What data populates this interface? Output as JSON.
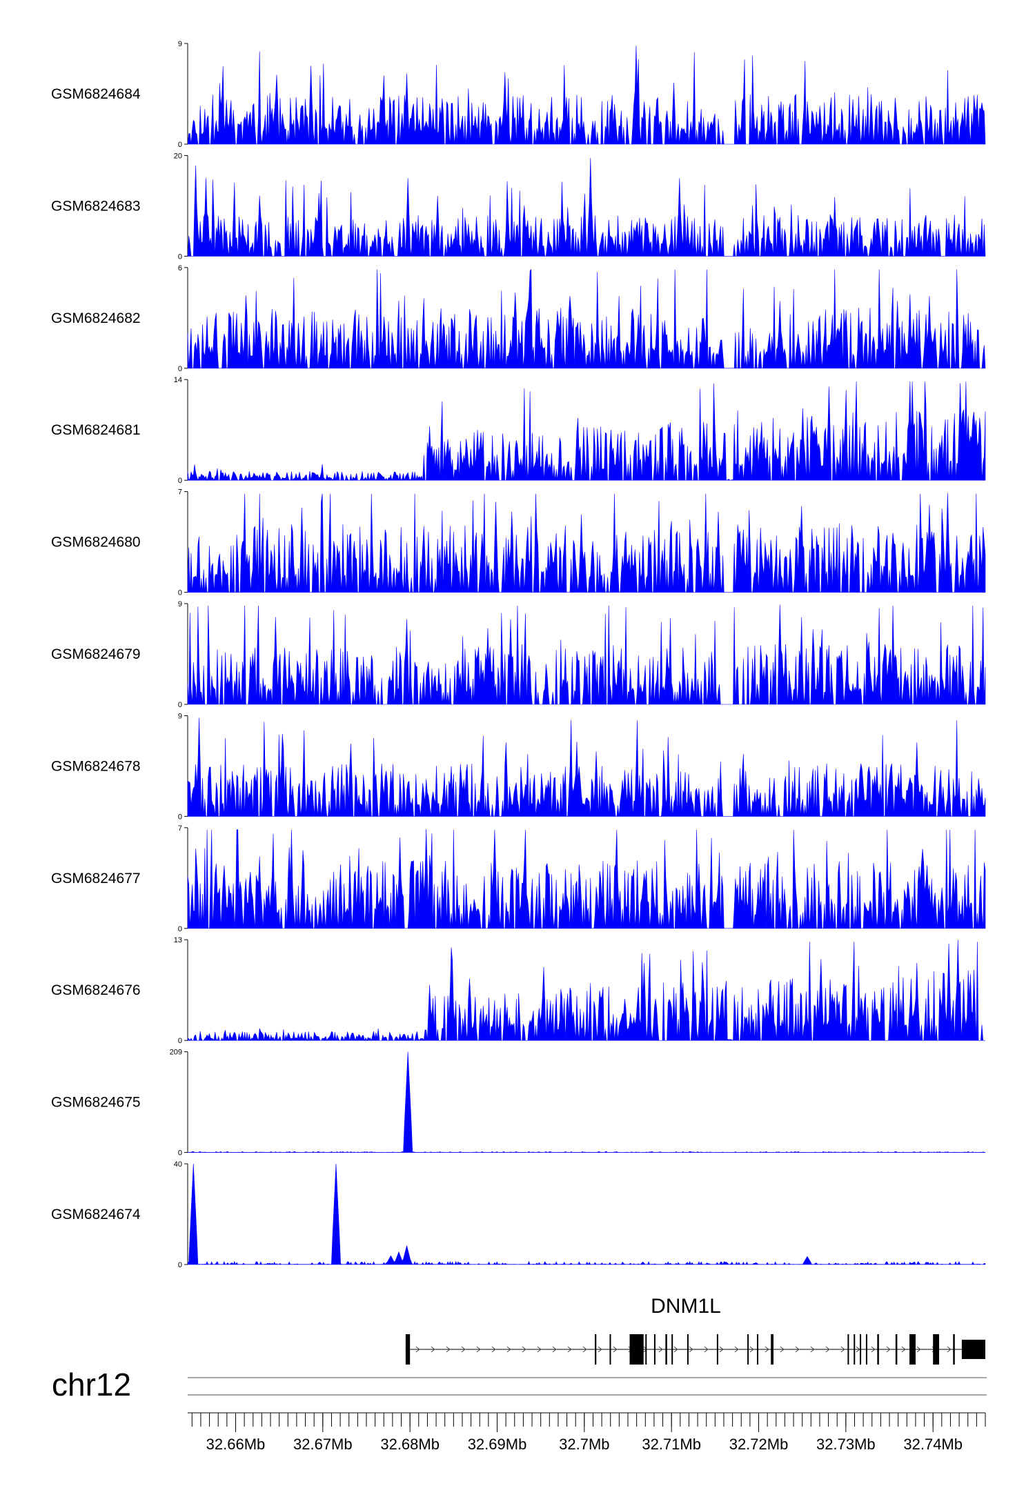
{
  "chart_data": {
    "type": "area",
    "title": "",
    "region": {
      "chromosome": "chr12",
      "start_mb": 32.6545,
      "end_mb": 32.746,
      "ticks": [
        "32.66Mb",
        "32.67Mb",
        "32.68Mb",
        "32.69Mb",
        "32.7Mb",
        "32.71Mb",
        "32.72Mb",
        "32.73Mb",
        "32.74Mb"
      ],
      "tick_values": [
        32.66,
        32.67,
        32.68,
        32.69,
        32.7,
        32.71,
        32.72,
        32.73,
        32.74
      ]
    },
    "tracks": [
      {
        "name": "GSM6824684",
        "ymax": 9,
        "ymin": 0,
        "pattern": "sparse",
        "base": 0.33,
        "seed": 11,
        "peaks": [
          [
            32.6686,
            7.0
          ],
          [
            32.6647,
            6.2
          ],
          [
            32.6796,
            6.3
          ],
          [
            32.6909,
            6.4
          ],
          [
            32.7059,
            8.8
          ],
          [
            32.7102,
            5.5
          ]
        ]
      },
      {
        "name": "GSM6824683",
        "ymax": 20,
        "ymin": 0,
        "pattern": "sparse",
        "base": 0.28,
        "seed": 23,
        "peaks": [
          [
            32.6554,
            18.0
          ],
          [
            32.6566,
            15.5
          ],
          [
            32.6627,
            12.0
          ],
          [
            32.6696,
            12.5
          ],
          [
            32.6798,
            15.5
          ],
          [
            32.6832,
            12.0
          ],
          [
            32.7007,
            19.5
          ],
          [
            32.7109,
            15.5
          ]
        ]
      },
      {
        "name": "GSM6824682",
        "ymax": 6,
        "ymin": 0,
        "pattern": "sparse",
        "base": 0.4,
        "seed": 37,
        "peaks": [
          [
            32.6938,
            5.8
          ],
          [
            32.6921,
            4.5
          ],
          [
            32.6936,
            4.2
          ],
          [
            32.6983,
            4.3
          ],
          [
            32.7224,
            4.0
          ],
          [
            32.7359,
            4.0
          ],
          [
            32.7396,
            4.3
          ]
        ]
      },
      {
        "name": "GSM6824681",
        "ymax": 14,
        "ymin": 0,
        "pattern": "ramp",
        "base": 0.35,
        "seed": 41,
        "peaks": [
          [
            32.6822,
            7.5
          ],
          [
            32.6878,
            7.0
          ],
          [
            32.6993,
            6.8
          ],
          [
            32.7112,
            7.3
          ],
          [
            32.7251,
            10.0
          ],
          [
            32.7281,
            13.0
          ],
          [
            32.7431,
            13.5
          ],
          [
            32.7441,
            9.0
          ]
        ]
      },
      {
        "name": "GSM6824680",
        "ymax": 7,
        "ymin": 0,
        "pattern": "sparse",
        "base": 0.45,
        "seed": 53,
        "peaks": [
          [
            32.6898,
            6.3
          ],
          [
            32.6917,
            5.6
          ],
          [
            32.6997,
            5.4
          ],
          [
            32.7154,
            5.6
          ],
          [
            32.7249,
            6.0
          ],
          [
            32.7396,
            6.1
          ],
          [
            32.7417,
            6.9
          ]
        ]
      },
      {
        "name": "GSM6824679",
        "ymax": 9,
        "ymin": 0,
        "pattern": "sparse",
        "base": 0.4,
        "seed": 67,
        "peaks": [
          [
            32.6646,
            7.8
          ],
          [
            32.6796,
            7.6
          ],
          [
            32.6915,
            7.6
          ],
          [
            32.6889,
            6.8
          ],
          [
            32.7225,
            8.9
          ],
          [
            32.7262,
            6.7
          ],
          [
            32.7326,
            5.6
          ]
        ]
      },
      {
        "name": "GSM6824678",
        "ymax": 9,
        "ymin": 0,
        "pattern": "sparse",
        "base": 0.35,
        "seed": 71,
        "peaks": [
          [
            32.6558,
            8.8
          ],
          [
            32.6732,
            6.5
          ],
          [
            32.691,
            6.6
          ],
          [
            32.7014,
            5.8
          ],
          [
            32.7335,
            4.4
          ],
          [
            32.7382,
            6.6
          ]
        ]
      },
      {
        "name": "GSM6824677",
        "ymax": 7,
        "ymin": 0,
        "pattern": "sparse",
        "base": 0.45,
        "seed": 83,
        "peaks": [
          [
            32.6789,
            6.3
          ],
          [
            32.6819,
            6.9
          ],
          [
            32.6578,
            4.5
          ],
          [
            32.6627,
            5.0
          ],
          [
            32.7131,
            4.5
          ],
          [
            32.7384,
            4.3
          ]
        ]
      },
      {
        "name": "GSM6824676",
        "ymax": 13,
        "ymin": 0,
        "pattern": "ramp",
        "base": 0.3,
        "seed": 97,
        "peaks": [
          [
            32.6847,
            12.0
          ],
          [
            32.6868,
            8.0
          ],
          [
            32.6954,
            9.5
          ],
          [
            32.7069,
            10.0
          ],
          [
            32.7271,
            10.5
          ],
          [
            32.7429,
            13.0
          ],
          [
            32.7418,
            12.5
          ],
          [
            32.7382,
            10.0
          ]
        ]
      },
      {
        "name": "GSM6824675",
        "ymax": 209,
        "ymin": 0,
        "pattern": "single",
        "base": 0.01,
        "seed": 101,
        "peaks": [
          [
            32.6797,
            209
          ]
        ]
      },
      {
        "name": "GSM6824674",
        "ymax": 40,
        "ymin": 0,
        "pattern": "multi",
        "base": 0.03,
        "seed": 113,
        "peaks": [
          [
            32.6551,
            40
          ],
          [
            32.6715,
            40
          ],
          [
            32.6796,
            7.5
          ],
          [
            32.6787,
            5.0
          ],
          [
            32.6778,
            3.5
          ],
          [
            32.7256,
            3.2
          ]
        ]
      }
    ],
    "gene": {
      "name": "DNM1L",
      "start_mb": 32.6795,
      "end_mb": 32.746,
      "strand": "+",
      "exons": [
        {
          "s": 32.6795,
          "e": 32.68,
          "tall": true
        },
        {
          "s": 32.7012,
          "e": 32.70138,
          "tall": true
        },
        {
          "s": 32.7029,
          "e": 32.70305,
          "tall": true
        },
        {
          "s": 32.7052,
          "e": 32.7068,
          "tall": true
        },
        {
          "s": 32.707,
          "e": 32.70716,
          "tall": true
        },
        {
          "s": 32.708,
          "e": 32.70816,
          "tall": true
        },
        {
          "s": 32.7093,
          "e": 32.7095,
          "tall": true
        },
        {
          "s": 32.71,
          "e": 32.71016,
          "tall": true
        },
        {
          "s": 32.7118,
          "e": 32.71196,
          "tall": true
        },
        {
          "s": 32.7152,
          "e": 32.71536,
          "tall": true
        },
        {
          "s": 32.7187,
          "e": 32.71886,
          "tall": true
        },
        {
          "s": 32.7198,
          "e": 32.71996,
          "tall": true
        },
        {
          "s": 32.7214,
          "e": 32.7217,
          "tall": true
        },
        {
          "s": 32.7302,
          "e": 32.73036,
          "tall": true
        },
        {
          "s": 32.7309,
          "e": 32.73106,
          "tall": true
        },
        {
          "s": 32.7316,
          "e": 32.73176,
          "tall": true
        },
        {
          "s": 32.7323,
          "e": 32.73246,
          "tall": true
        },
        {
          "s": 32.7336,
          "e": 32.7338,
          "tall": true
        },
        {
          "s": 32.7357,
          "e": 32.7359,
          "tall": true
        },
        {
          "s": 32.7373,
          "e": 32.738,
          "tall": true
        },
        {
          "s": 32.74,
          "e": 32.7407,
          "tall": true
        },
        {
          "s": 32.7423,
          "e": 32.7425,
          "tall": true
        },
        {
          "s": 32.7433,
          "e": 32.746,
          "tall": false
        }
      ]
    },
    "colors": {
      "signal": "#0000ff",
      "axis": "#000000",
      "gene": "#000000",
      "ideogram": "#888888"
    }
  }
}
